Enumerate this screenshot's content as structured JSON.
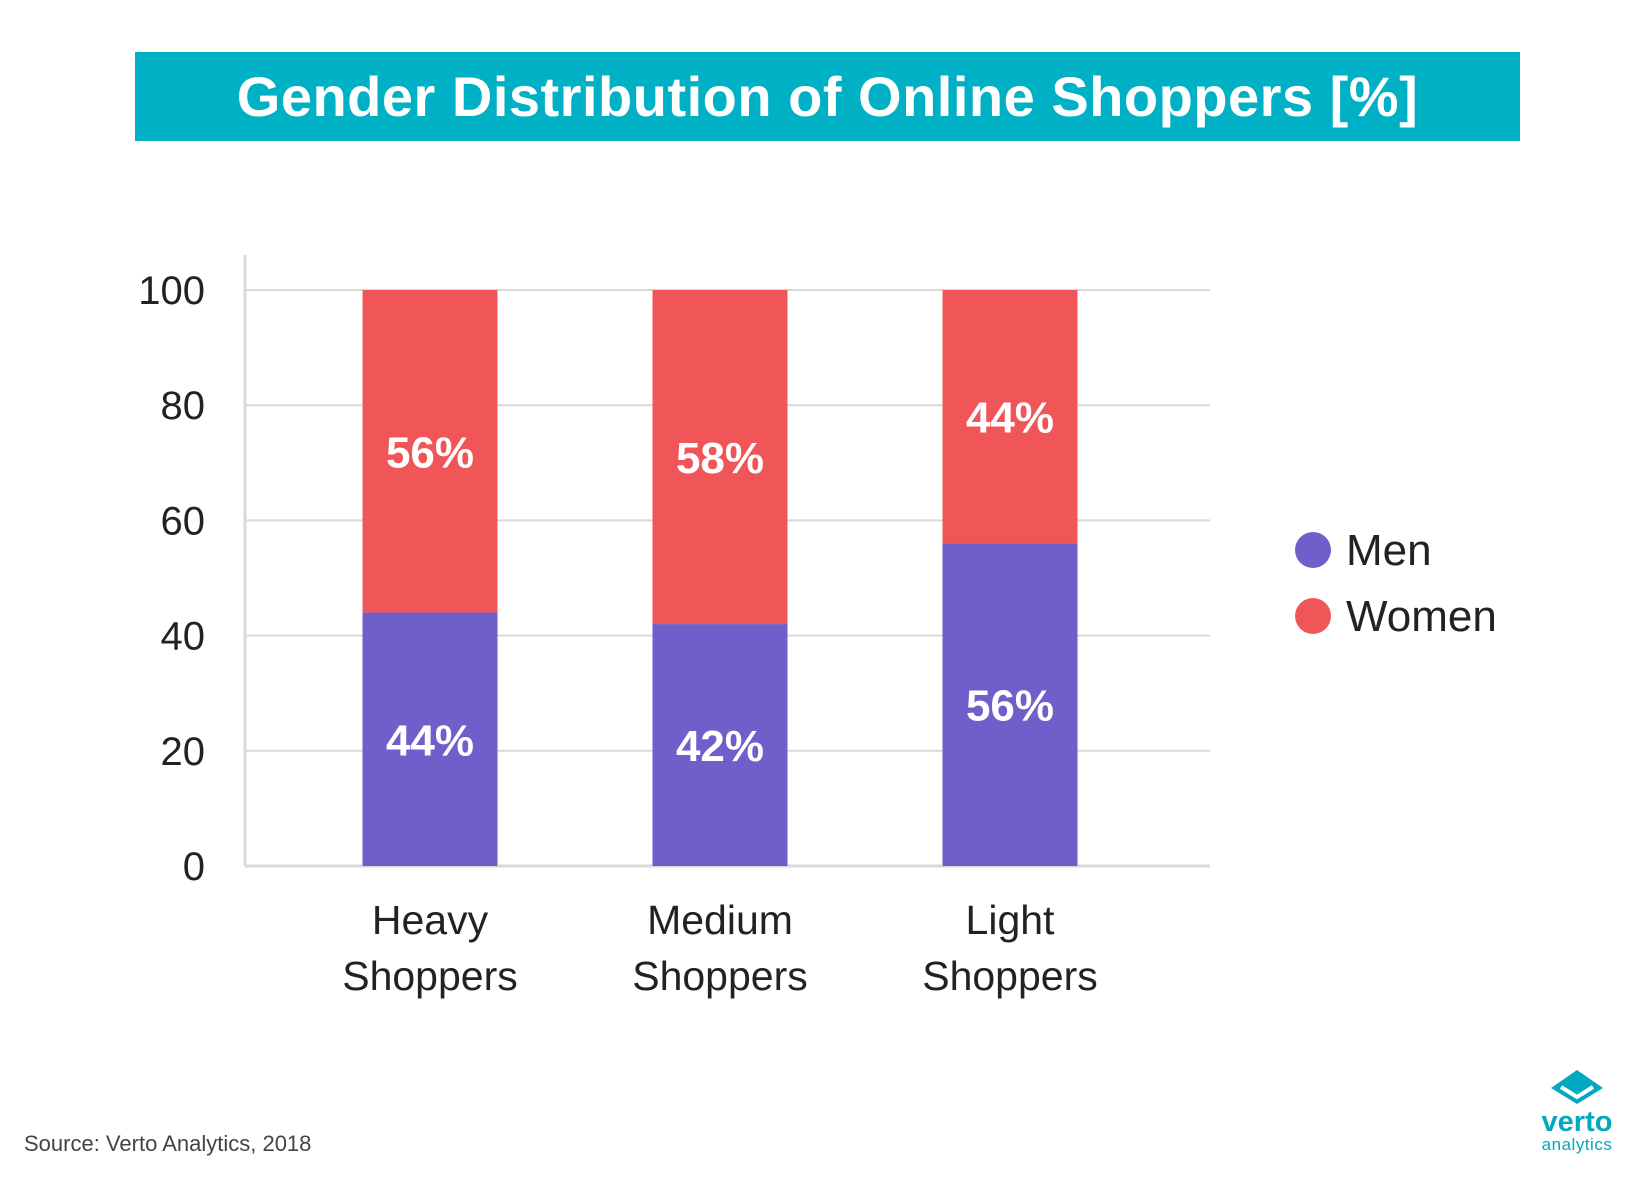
{
  "header": {
    "title": "Gender Distribution of Online Shoppers [%]"
  },
  "chart_data": {
    "type": "bar",
    "stacked": true,
    "title": "Gender Distribution of Online Shoppers [%]",
    "xlabel": "",
    "ylabel": "",
    "categories": [
      [
        "Heavy",
        "Shoppers"
      ],
      [
        "Medium",
        "Shoppers"
      ],
      [
        "Light",
        "Shoppers"
      ]
    ],
    "series": [
      {
        "name": "Men",
        "color": "#6f5fcb",
        "values": [
          44,
          42,
          56
        ],
        "labels": [
          "44%",
          "42%",
          "56%"
        ]
      },
      {
        "name": "Women",
        "color": "#f05658",
        "values": [
          56,
          58,
          44
        ],
        "labels": [
          "56%",
          "58%",
          "44%"
        ]
      }
    ],
    "ylim": [
      0,
      100
    ],
    "yticks": [
      "0",
      "20",
      "40",
      "60",
      "80",
      "100"
    ],
    "grid": true,
    "legend_position": "right"
  },
  "footer": {
    "source": "Source: Verto Analytics, 2018"
  },
  "logo": {
    "word": "verto",
    "sub": "analytics",
    "color": "#00a9bf",
    "icon": "diamond-check-icon"
  }
}
